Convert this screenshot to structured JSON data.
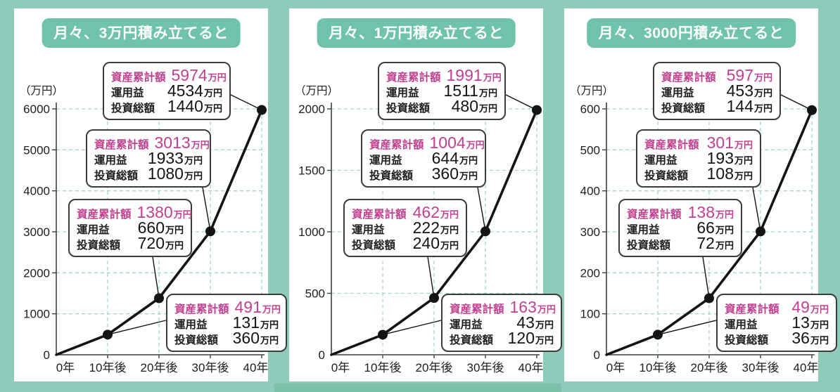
{
  "colors": {
    "background_teal": "#8ecbba",
    "badge_teal": "#6fc3aa",
    "highlight_magenta": "#c2408f",
    "grid_teal": "#a5d6c8",
    "axis_gray": "#3f3f3f",
    "series_black": "#141414",
    "panel_white": "#ffffff",
    "bottom_strip_teal": "#7ac0ab"
  },
  "shared": {
    "y_axis_unit_label": "（万円）",
    "value_unit": "万円",
    "callout_row_labels": {
      "total": "資産累計額",
      "gain": "運用益",
      "invested": "投資総額"
    }
  },
  "charts": [
    {
      "title": "月々、3万円積み立てると",
      "chart_data": {
        "type": "line",
        "x": [
          "0年",
          "10年後",
          "20年後",
          "30年後",
          "40年後"
        ],
        "values": [
          0,
          491,
          1380,
          3013,
          5974
        ],
        "ylabel": "（万円）",
        "ylim": [
          0,
          6000
        ],
        "yticks": [
          0,
          1000,
          2000,
          3000,
          4000,
          5000,
          6000
        ],
        "grid": true,
        "annotations": [
          {
            "at": "10年後",
            "total": 491,
            "gain": 131,
            "invested": 360
          },
          {
            "at": "20年後",
            "total": 1380,
            "gain": 660,
            "invested": 720
          },
          {
            "at": "30年後",
            "total": 3013,
            "gain": 1933,
            "invested": 1080
          },
          {
            "at": "40年後",
            "total": 5974,
            "gain": 4534,
            "invested": 1440
          }
        ]
      }
    },
    {
      "title": "月々、1万円積み立てると",
      "chart_data": {
        "type": "line",
        "x": [
          "0年",
          "10年後",
          "20年後",
          "30年後",
          "40年後"
        ],
        "values": [
          0,
          163,
          462,
          1004,
          1991
        ],
        "ylabel": "（万円）",
        "ylim": [
          0,
          2000
        ],
        "yticks": [
          0,
          500,
          1000,
          1500,
          2000
        ],
        "grid": true,
        "annotations": [
          {
            "at": "10年後",
            "total": 163,
            "gain": 43,
            "invested": 120
          },
          {
            "at": "20年後",
            "total": 462,
            "gain": 222,
            "invested": 240
          },
          {
            "at": "30年後",
            "total": 1004,
            "gain": 644,
            "invested": 360
          },
          {
            "at": "40年後",
            "total": 1991,
            "gain": 1511,
            "invested": 480
          }
        ]
      }
    },
    {
      "title": "月々、3000円積み立てると",
      "chart_data": {
        "type": "line",
        "x": [
          "0年",
          "10年後",
          "20年後",
          "30年後",
          "40年後"
        ],
        "values": [
          0,
          49,
          138,
          301,
          597
        ],
        "ylabel": "（万円）",
        "ylim": [
          0,
          600
        ],
        "yticks": [
          0,
          100,
          200,
          300,
          400,
          500,
          600
        ],
        "grid": true,
        "annotations": [
          {
            "at": "10年後",
            "total": 49,
            "gain": 13,
            "invested": 36
          },
          {
            "at": "20年後",
            "total": 138,
            "gain": 66,
            "invested": 72
          },
          {
            "at": "30年後",
            "total": 301,
            "gain": 193,
            "invested": 108
          },
          {
            "at": "40年後",
            "total": 597,
            "gain": 453,
            "invested": 144
          }
        ]
      }
    }
  ]
}
